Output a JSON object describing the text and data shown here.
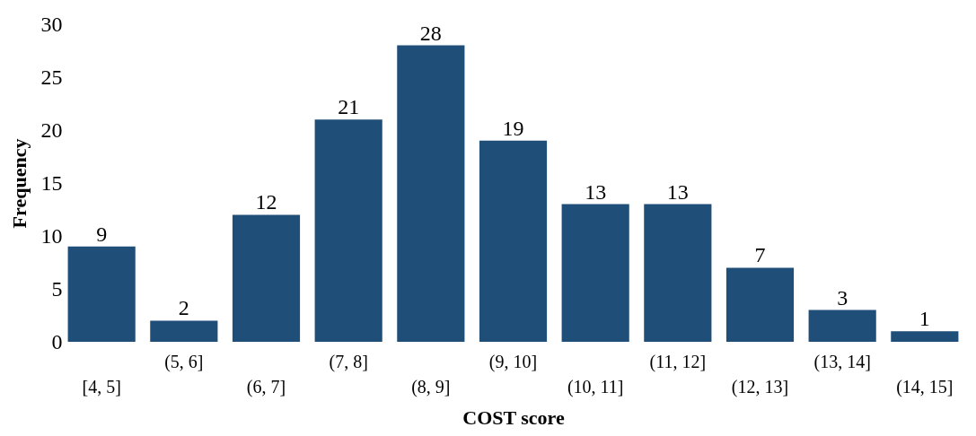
{
  "chart_data": {
    "type": "bar",
    "xlabel": "COST score",
    "ylabel": "Frequency",
    "categories": [
      "[4, 5]",
      "(5, 6]",
      "(6, 7]",
      "(7, 8]",
      "(8, 9]",
      "(9, 10]",
      "(10, 11]",
      "(11, 12]",
      "(12, 13]",
      "(13, 14]",
      "(14, 15]"
    ],
    "values": [
      9,
      2,
      12,
      21,
      28,
      19,
      13,
      13,
      7,
      3,
      1
    ],
    "color": "#1f4e79",
    "ylim": [
      0,
      30
    ],
    "yticks": [
      0,
      5,
      10,
      15,
      20,
      25,
      30
    ],
    "grid": false,
    "data_labels": true
  }
}
